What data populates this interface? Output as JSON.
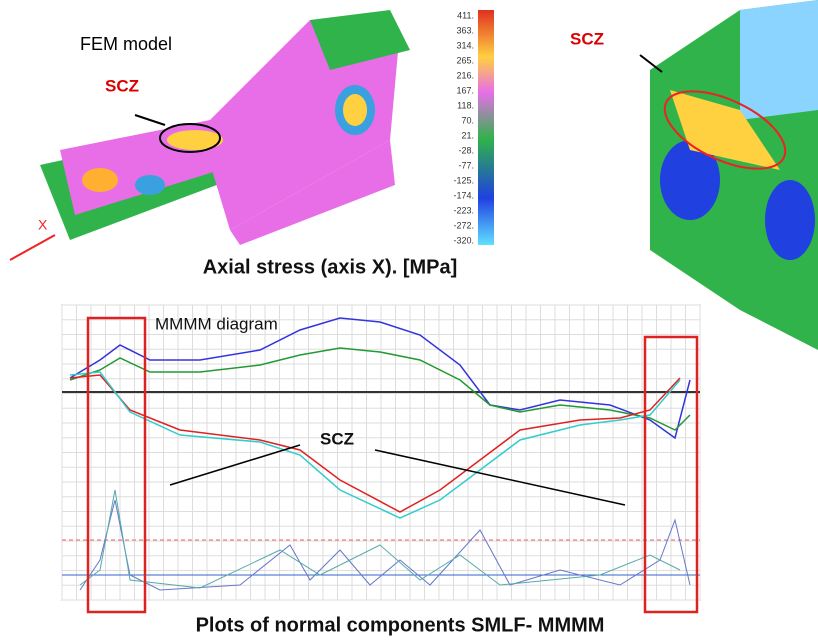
{
  "fem_panel": {
    "title": "FEM model",
    "zone_label": "SCZ",
    "axis_label": "X"
  },
  "colorbar": {
    "labels": [
      "411.",
      "363.",
      "314.",
      "265.",
      "216.",
      "167.",
      "118.",
      "70.",
      "21.",
      "-28.",
      "-77.",
      "-125.",
      "-174.",
      "-223.",
      "-272.",
      "-320."
    ]
  },
  "detail_panel": {
    "zone_label": "SCZ"
  },
  "stress_caption": "Axial stress (axis X). [MPa]",
  "plot": {
    "title": "MMMM diagram",
    "zone_label": "SCZ"
  },
  "plot_caption": "Plots of normal components SMLF- MMMM"
}
